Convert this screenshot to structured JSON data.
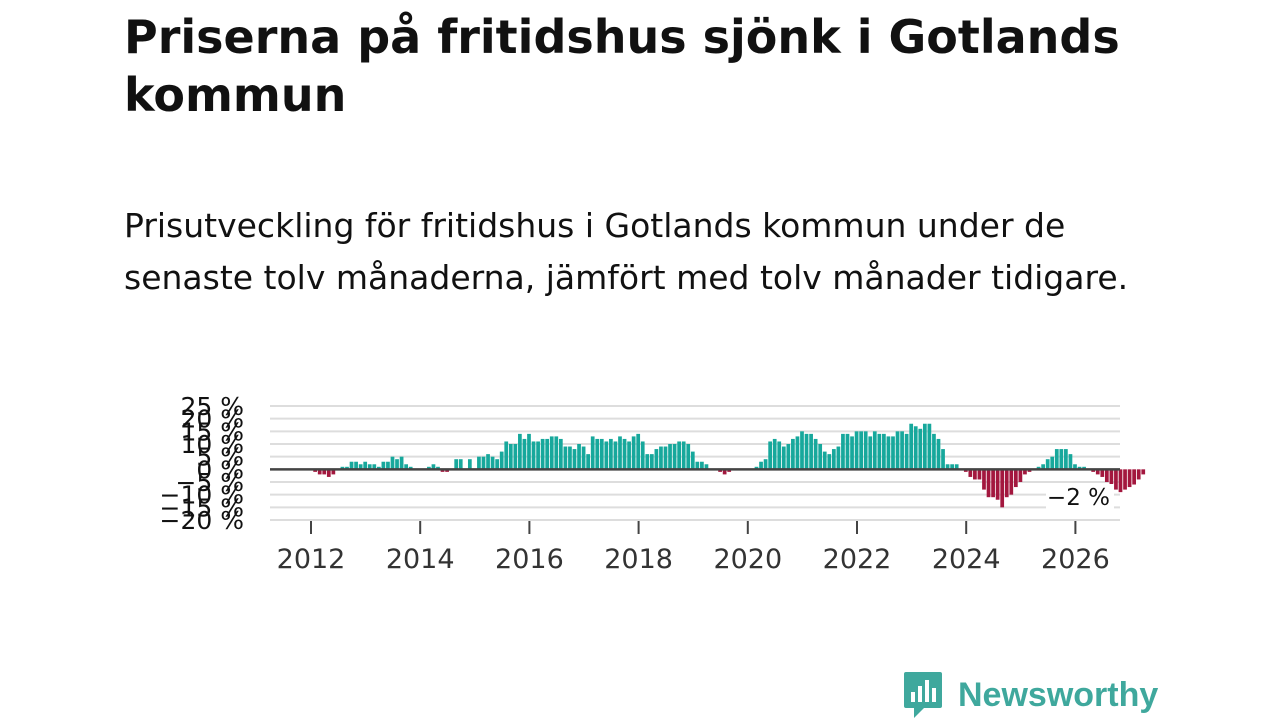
{
  "title": "Priserna på fritidshus sjönk i Gotlands kommun",
  "subtitle": "Prisutveckling för fritidshus i Gotlands kommun under de senaste tolv månaderna, jämfört med tolv månader tidigare.",
  "logo": {
    "text": "Newsworthy",
    "icon": "newsworthy-chart-icon",
    "color": "#3fa89d"
  },
  "colors": {
    "positive": "#17a89c",
    "negative": "#a3173e",
    "grid": "#dddddd",
    "zero_line": "#444444",
    "text": "#111111"
  },
  "chart_data": {
    "type": "bar",
    "title": "",
    "xlabel": "",
    "ylabel": "",
    "ylim": [
      -20,
      25
    ],
    "y_ticks": [
      {
        "value": 25,
        "label": "25 %"
      },
      {
        "value": 20,
        "label": "20 %"
      },
      {
        "value": 15,
        "label": "15 %"
      },
      {
        "value": 10,
        "label": "10 %"
      },
      {
        "value": 5,
        "label": "5 %"
      },
      {
        "value": 0,
        "label": "0 %"
      },
      {
        "value": -5,
        "label": "−5 %"
      },
      {
        "value": -10,
        "label": "−10 %"
      },
      {
        "value": -15,
        "label": "−15 %"
      },
      {
        "value": -20,
        "label": "−20 %"
      }
    ],
    "x_ticks": [
      {
        "value": 2012,
        "label": "2012"
      },
      {
        "value": 2014,
        "label": "2014"
      },
      {
        "value": 2016,
        "label": "2016"
      },
      {
        "value": 2018,
        "label": "2018"
      },
      {
        "value": 2020,
        "label": "2020"
      },
      {
        "value": 2022,
        "label": "2022"
      },
      {
        "value": 2024,
        "label": "2024"
      },
      {
        "value": 2026,
        "label": "2026"
      }
    ],
    "last_value_label": "−2 %",
    "grid": true,
    "series": [
      {
        "start": "2012-01",
        "frequency": "monthly",
        "values": [
          0,
          -1,
          -2,
          -2,
          -3,
          -2,
          0,
          1,
          1,
          3,
          3,
          2,
          3,
          2,
          2,
          1,
          3,
          3,
          5,
          4,
          5,
          2,
          1,
          0,
          0,
          0,
          1,
          2,
          1,
          -1,
          -1,
          0,
          4,
          4,
          0,
          4,
          0,
          5,
          5,
          6,
          5,
          4,
          7,
          11,
          10,
          10,
          14,
          12,
          14,
          11,
          11,
          12,
          12,
          13,
          13,
          12,
          9,
          9,
          8,
          10,
          9,
          6,
          13,
          12,
          12,
          11,
          12,
          11,
          13,
          12,
          11,
          13,
          14,
          11,
          6,
          6,
          8,
          9,
          9,
          10,
          10,
          11,
          11,
          10,
          7,
          3,
          3,
          2,
          0,
          0,
          -1,
          -2,
          -1,
          0,
          0,
          0,
          0,
          0,
          1,
          3,
          4,
          11,
          12,
          11,
          9,
          10,
          12,
          13,
          15,
          14,
          14,
          12,
          10,
          7,
          6,
          8,
          9,
          14,
          14,
          13,
          15,
          15,
          15,
          13,
          15,
          14,
          14,
          13,
          13,
          15,
          15,
          14,
          18,
          17,
          16,
          18,
          18,
          14,
          12,
          8,
          2,
          2,
          2,
          0,
          -1,
          -3,
          -4,
          -4,
          -8,
          -11,
          -11,
          -12,
          -15,
          -11,
          -10,
          -7,
          -5,
          -2,
          -1,
          0,
          1,
          2,
          4,
          5,
          8,
          8,
          8,
          6,
          2,
          1,
          1,
          0,
          -1,
          -2,
          -3,
          -5,
          -7,
          -8,
          -9,
          -8,
          -7,
          -6,
          -4,
          -2
        ]
      }
    ]
  }
}
